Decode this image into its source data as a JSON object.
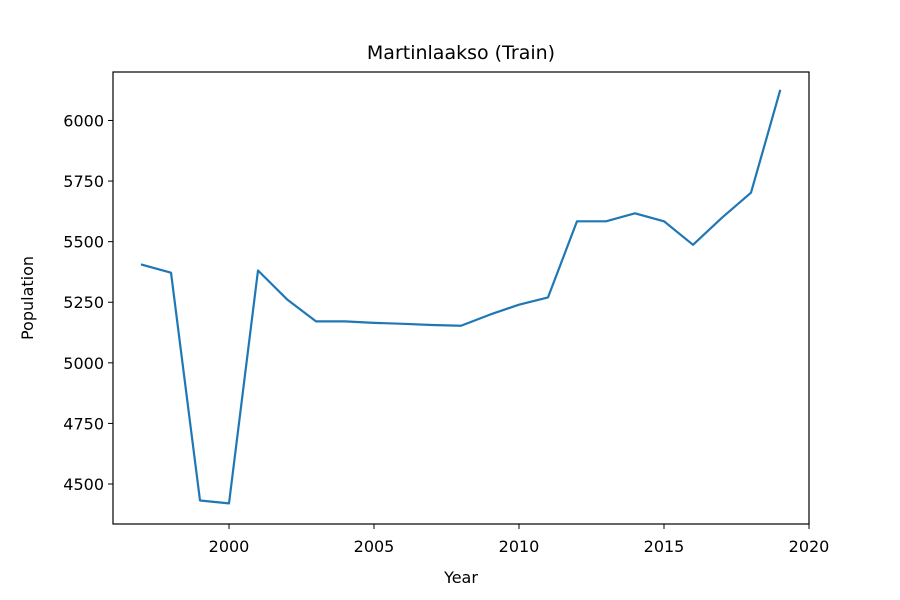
{
  "chart_data": {
    "type": "line",
    "title": "Martinlaakso (Train)",
    "xlabel": "Year",
    "ylabel": "Population",
    "xlim": [
      1996.0,
      2020.0
    ],
    "ylim": [
      4335,
      6200
    ],
    "xticks": [
      2000,
      2005,
      2010,
      2015,
      2020
    ],
    "yticks": [
      4500,
      4750,
      5000,
      5250,
      5500,
      5750,
      6000
    ],
    "grid": false,
    "legend": "none",
    "series": [
      {
        "color": "#1f77b4",
        "x": [
          1997,
          1998,
          1999,
          2000,
          2001,
          2002,
          2003,
          2004,
          2005,
          2006,
          2007,
          2008,
          2009,
          2010,
          2011,
          2012,
          2013,
          2014,
          2015,
          2016,
          2017,
          2018,
          2019
        ],
        "values": [
          5405,
          5372,
          4432,
          4420,
          5381,
          5262,
          5171,
          5171,
          5165,
          5161,
          5156,
          5153,
          5199,
          5240,
          5270,
          5584,
          5584,
          5617,
          5584,
          5487,
          5599,
          5702,
          6122
        ]
      }
    ]
  }
}
